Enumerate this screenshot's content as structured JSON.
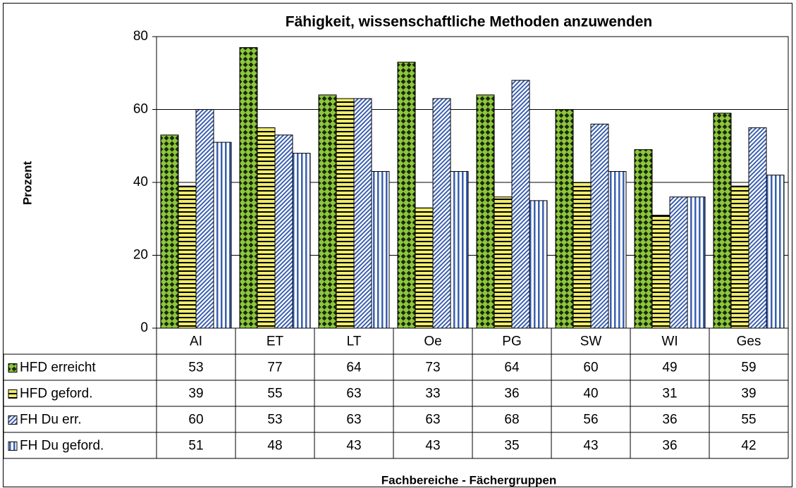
{
  "chart_data": {
    "type": "bar",
    "title": "Fähigkeit, wissenschaftliche Methoden anzuwenden",
    "y_label": "Prozent",
    "x_label": "Fachbereiche - Fächergruppen",
    "categories": [
      "AI",
      "ET",
      "LT",
      "Oe",
      "PG",
      "SW",
      "WI",
      "Ges"
    ],
    "series": [
      {
        "name": "HFD erreicht",
        "color": "#8cc63e",
        "values": [
          53,
          77,
          64,
          73,
          64,
          60,
          49,
          59
        ]
      },
      {
        "name": "HFD geford.",
        "color": "#f0ec6c",
        "values": [
          39,
          55,
          63,
          33,
          36,
          40,
          31,
          39
        ]
      },
      {
        "name": "FH Du err.",
        "color": "#3a5fb0",
        "values": [
          60,
          53,
          63,
          63,
          68,
          56,
          36,
          55
        ]
      },
      {
        "name": "FH Du geford.",
        "color": "#3a5fb0",
        "values": [
          51,
          48,
          43,
          43,
          35,
          43,
          36,
          42
        ]
      }
    ],
    "ylim": [
      0,
      80
    ],
    "yticks": [
      0,
      20,
      40,
      60,
      80
    ],
    "grid": true
  }
}
